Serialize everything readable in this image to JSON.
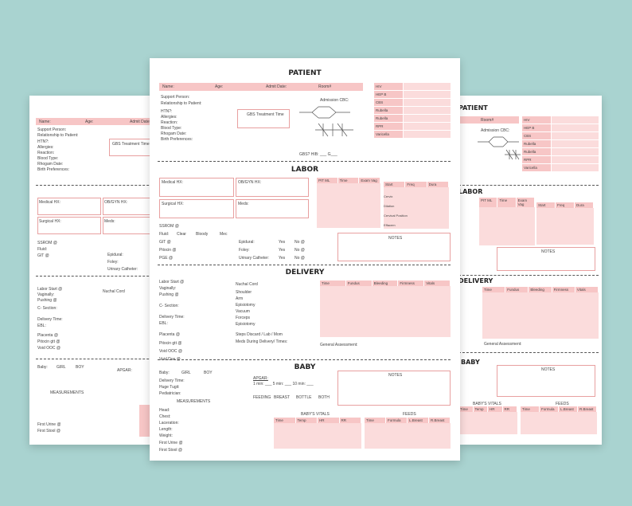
{
  "colors": {
    "background": "#a9d3d0",
    "accent": "#f7c6c6",
    "accent_light": "#fbdcdc"
  },
  "patient": {
    "title": "PATIENT",
    "name": "Name:",
    "age": "Age:",
    "admit": "Admit Date:",
    "room": "Room#",
    "support": "Support Person:",
    "relationship": "Relationship to Patient:",
    "fields": [
      "HTN?:",
      "Allergies:",
      "Reaction:",
      "Blood Type:",
      "Rhogam Date:",
      "Birth Preferences:"
    ],
    "gbs": "GBS Treatment Time",
    "admission_cbc": "Admission CBC:",
    "gbs_note": "GBS? HIB: ___ G___",
    "labs": [
      "HIV",
      "HEP B",
      "CBS",
      "Rubella",
      "Rubella",
      "RPR",
      "Varicella"
    ]
  },
  "labor": {
    "title": "LABOR",
    "medical_hx": "Medical HX:",
    "obgyn_hx": "OB/GYN HX:",
    "surgical_hx": "Surgical HX:",
    "meds": "Meds:",
    "ssrom": "SSROM @",
    "fluid": "Fluid:",
    "fluid_opts": [
      "Clear",
      "Bloody",
      "Mec"
    ],
    "epidural": "Epidural:",
    "foley": "Foley:",
    "catheter": "Urinary Catheter:",
    "yes": "Yes",
    "no": "No @",
    "gtt": "GIT @",
    "pitocin": "Pitocin @",
    "pgs": "PGE @",
    "pit_headers": [
      "PIT ML",
      "Time",
      "Exam Vag"
    ],
    "ctx_headers": [
      "Start",
      "Freq",
      "Dura"
    ],
    "ctx_rows": [
      "Cervix",
      "Dilation",
      "Cervical Position",
      "Effacem"
    ],
    "notes": "NOTES"
  },
  "delivery": {
    "title": "DELIVERY",
    "labor_start": "Labor Start @",
    "vaginally": "Vaginally:",
    "pushing": "Pushing @",
    "csection": "C- Section:",
    "delivery_time": "Delivery Time:",
    "ebl": "EBL:",
    "placenta": "Placenta @",
    "pitocin_gtt": "Pitocin gtt @",
    "void": "Void OOC @",
    "void2": "Void Due @",
    "nuchal": "Nuchal Cord",
    "nuchal_list": [
      "Shoulder",
      "Arm",
      "Episiotomy",
      "Vacuum",
      "Forceps",
      "Episiotomy"
    ],
    "steps": "Steps Discard / Lab / Mom",
    "meds_during": "Meds During Delivery/ Times:",
    "headers": [
      "Time",
      "Fundus",
      "Bleeding",
      "Firmness",
      "Vitals"
    ],
    "general": "General Assessment:"
  },
  "baby": {
    "title": "BABY",
    "label": "Baby:",
    "girl": "GIRL",
    "boy": "BOY",
    "delivery_time": "Delivery Time:",
    "huge_tugt": "Huge Tugit:",
    "pediatrician": "Pediatrician:",
    "measurements": "MEASUREMENTS",
    "meas": [
      "Head:",
      "Chest:",
      "Laceration:",
      "Length:",
      "Weight:"
    ],
    "first_urine": "First Urine @",
    "first_stool": "First Stool @",
    "apgar": "APGAR:",
    "apgar_times": "1 min: ___ 5 min: ___ 10 min: ___",
    "feeding": "FEEDING",
    "feed_opts": [
      "BREAST",
      "BOTTLE",
      "BOTH"
    ],
    "notes": "NOTES",
    "vitals_title": "BABY'S VITALS",
    "vitals_headers": [
      "Time",
      "Temp",
      "HR",
      "RR"
    ],
    "feeds_title": "FEEDS",
    "feeds_headers": [
      "Time",
      "Formula",
      "L.Breast",
      "R.Breast"
    ]
  }
}
